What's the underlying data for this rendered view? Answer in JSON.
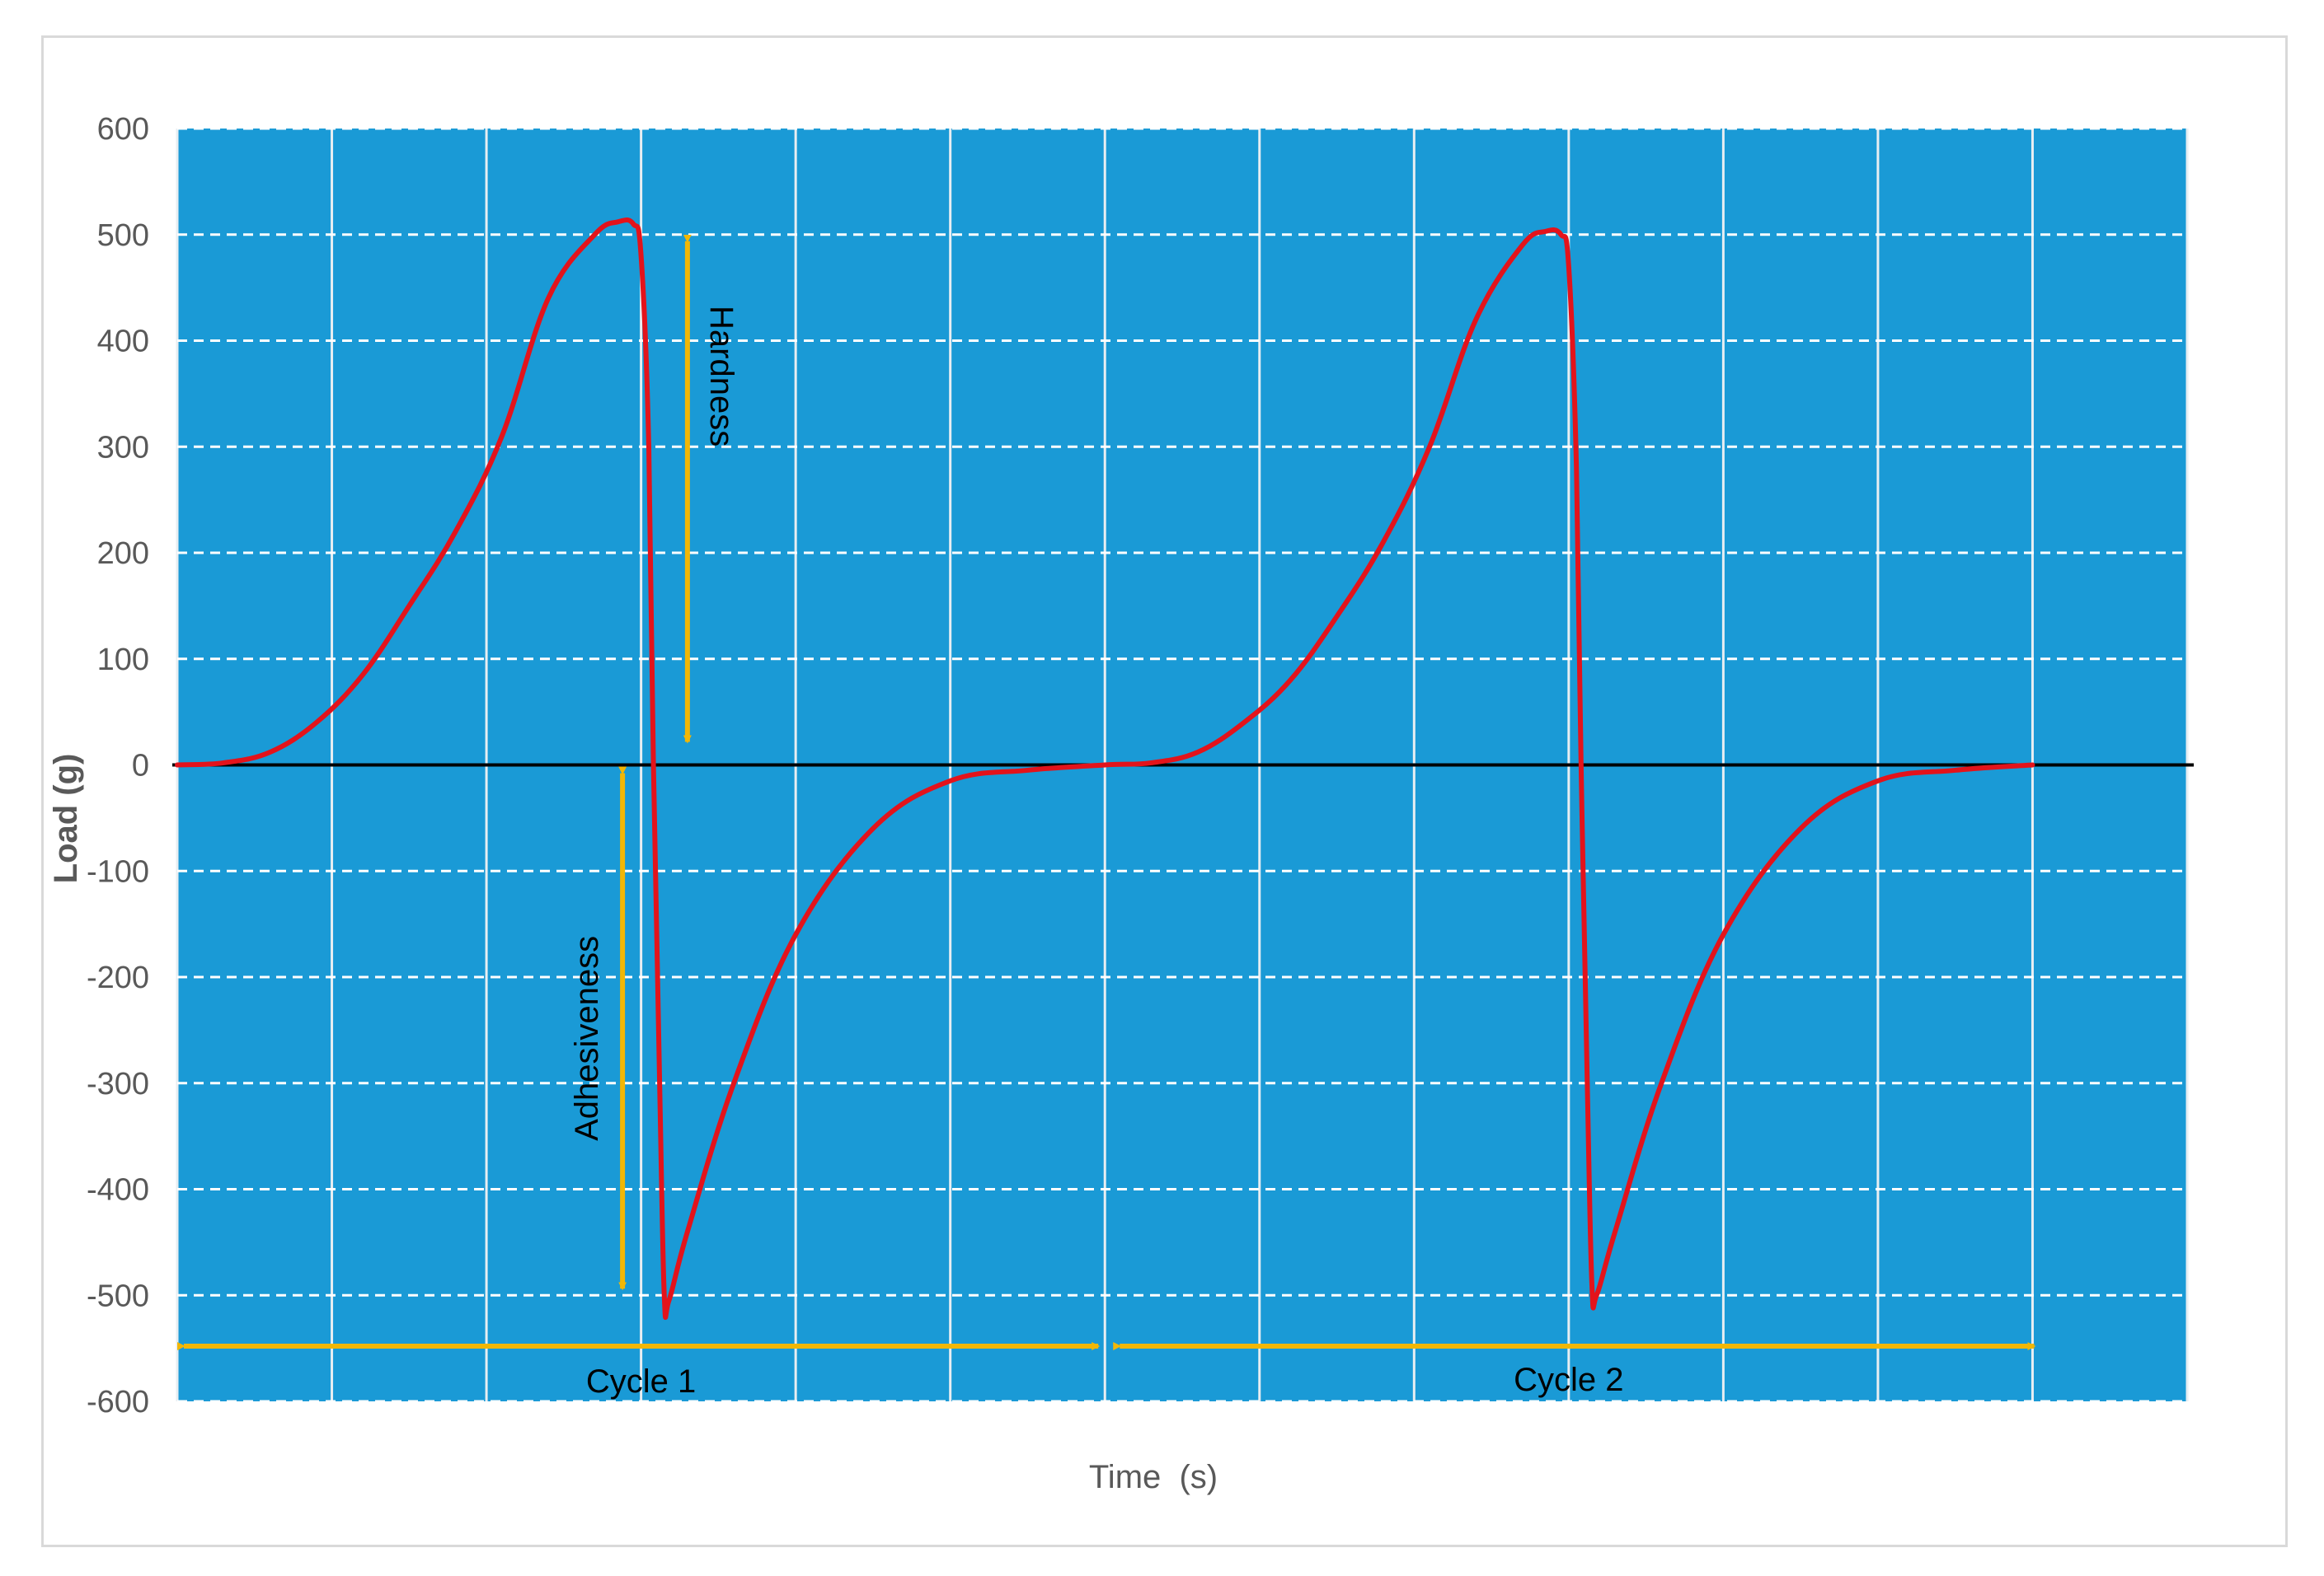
{
  "chart_data": {
    "type": "line",
    "title": "",
    "xlabel": "Time  (s)",
    "ylabel": "Load (g)",
    "ylim": [
      -600,
      600
    ],
    "yticks": [
      600,
      500,
      400,
      300,
      200,
      100,
      0,
      -100,
      -200,
      -300,
      -400,
      -500,
      -600
    ],
    "y_tick_labels": [
      "600",
      "500",
      "400",
      "300",
      "200",
      "100",
      "0",
      "-100",
      "-200",
      "-300",
      "-400",
      "-500",
      "-600"
    ],
    "x_tick_labels": [],
    "grid": true,
    "legend": "none",
    "colors": {
      "plot_background": "#1a9ad6",
      "series": "#e3131b",
      "annotation": "#f2b705",
      "zero_line": "#000000",
      "grid": "#ffffff"
    },
    "series": [
      {
        "x": [
          0,
          0.3,
          0.6,
          0.9,
          1.2,
          1.5,
          1.8,
          2.1,
          2.4,
          2.7,
          2.85,
          2.95,
          3.0,
          3.05,
          3.08,
          3.12,
          3.15,
          3.18,
          3.3,
          3.6,
          4.0,
          4.5,
          5.0,
          5.5,
          6.0,
          6.3,
          6.6,
          6.9,
          7.2,
          7.5,
          7.8,
          8.1,
          8.4,
          8.7,
          8.85,
          8.95,
          9.0,
          9.05,
          9.08,
          9.12,
          9.15,
          9.18,
          9.3,
          9.6,
          10.0,
          10.5,
          11.0,
          11.5,
          12.0
        ],
        "y": [
          0,
          2,
          12,
          40,
          85,
          150,
          220,
          310,
          440,
          500,
          512,
          510,
          480,
          300,
          0,
          -300,
          -500,
          -505,
          -440,
          -300,
          -160,
          -60,
          -15,
          -5,
          0,
          2,
          12,
          40,
          80,
          140,
          210,
          300,
          420,
          490,
          503,
          500,
          470,
          280,
          0,
          -300,
          -490,
          -500,
          -440,
          -300,
          -160,
          -60,
          -15,
          -5,
          0
        ]
      }
    ],
    "annotations": [
      {
        "label": "Hardness",
        "from": 500,
        "to": 0
      },
      {
        "label": "Adhesiveness",
        "from": 0,
        "to": -500
      },
      {
        "label": "Cycle 1",
        "from_x": 0,
        "to_x": 6
      },
      {
        "label": "Cycle 2",
        "from_x": 6,
        "to_x": 12
      }
    ]
  }
}
